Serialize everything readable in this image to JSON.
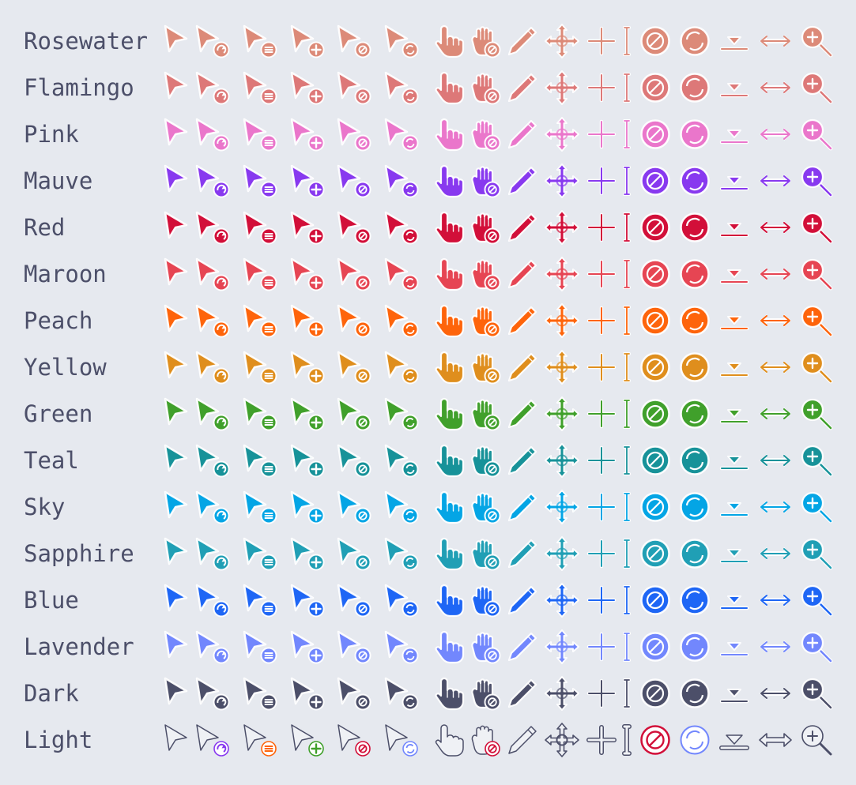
{
  "cursor_kinds": [
    "default-arrow-icon",
    "progress-arrow-icon",
    "context-menu-arrow-icon",
    "copy-arrow-icon",
    "no-drop-arrow-icon",
    "alias-arrow-icon",
    "pointer-hand-icon",
    "not-allowed-grab-hand-icon",
    "pencil-icon",
    "move-icon",
    "crosshair-icon",
    "text-beam-icon",
    "not-allowed-icon",
    "wait-spinner-icon",
    "bottom-side-icon",
    "horizontal-resize-icon",
    "zoom-in-icon"
  ],
  "flavors": [
    {
      "label": "Rosewater",
      "color": "#dc8a78"
    },
    {
      "label": "Flamingo",
      "color": "#dd7878"
    },
    {
      "label": "Pink",
      "color": "#ea76cb"
    },
    {
      "label": "Mauve",
      "color": "#8839ef"
    },
    {
      "label": "Red",
      "color": "#d20f39"
    },
    {
      "label": "Maroon",
      "color": "#e64553"
    },
    {
      "label": "Peach",
      "color": "#fe640b"
    },
    {
      "label": "Yellow",
      "color": "#df8e1d"
    },
    {
      "label": "Green",
      "color": "#40a02b"
    },
    {
      "label": "Teal",
      "color": "#179299"
    },
    {
      "label": "Sky",
      "color": "#04a5e5"
    },
    {
      "label": "Sapphire",
      "color": "#209fb5"
    },
    {
      "label": "Blue",
      "color": "#1e66f5"
    },
    {
      "label": "Lavender",
      "color": "#7287fd"
    },
    {
      "label": "Dark",
      "color": "#4c4f69"
    },
    {
      "label": "Light",
      "color": "#eff1f5"
    }
  ],
  "light_outline_color": "#4c4f69",
  "light_badge_colors": [
    "#8839ef",
    "#fe640b",
    "#40a02b",
    "#d20f39",
    "#7287fd"
  ]
}
